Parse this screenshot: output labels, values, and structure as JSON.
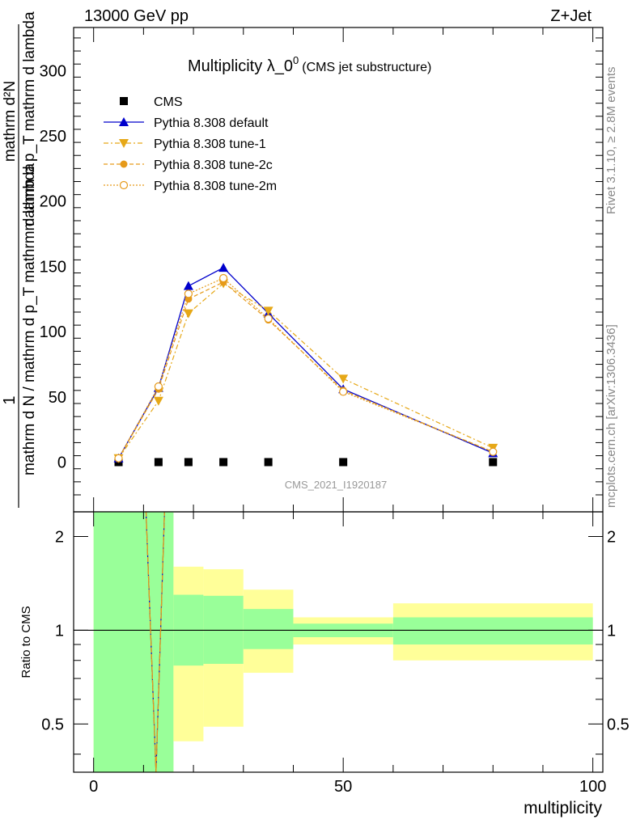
{
  "header": {
    "left": "13000 GeV pp",
    "right": "Z+Jet"
  },
  "plot": {
    "title_main": "Multiplicity λ_0",
    "title_sup": "0",
    "title_sub": "(CMS jet substructure)",
    "ylabel_numerator": "1",
    "ylabel_denominator": "mathrm d N / mathrm d p_T mathrm d lambda",
    "ylabel_right_top": "mathrm d²N",
    "ylabel_right_bottom": "mathrm d p_T mathrm d lambda",
    "watermark": "CMS_2021_I1920187",
    "side_label_top": "Rivet 3.1.10, ≥ 2.8M events",
    "side_label_bottom": "mcplots.cern.ch [arXiv:1306.3436]",
    "xlabel": "multiplicity",
    "ratio_ylabel": "Ratio to CMS"
  },
  "chart_data": {
    "type": "line",
    "title": "Multiplicity λ_0^0 (CMS jet substructure)",
    "xlabel": "multiplicity",
    "ylabel": "1 / (mathrm d N / mathrm d p_T mathrm d lambda) · mathrm d²N / (mathrm d p_T mathrm d lambda)",
    "xlim": [
      -4,
      102
    ],
    "ylim": [
      -38,
      333
    ],
    "yticks": [
      0,
      50,
      100,
      150,
      200,
      250,
      300
    ],
    "xticks": [
      0,
      50,
      100
    ],
    "legend_position": "top-left",
    "series": [
      {
        "name": "CMS",
        "color": "#000000",
        "marker": "square",
        "x": [
          5,
          13,
          19,
          26,
          35,
          50,
          80
        ],
        "y": [
          0.1,
          0.1,
          0.1,
          0.1,
          0.1,
          0.1,
          0.1
        ]
      },
      {
        "name": "Pythia 8.308 default",
        "color": "#0000cc",
        "marker": "triangle-up",
        "line": "solid",
        "x": [
          5,
          13,
          19,
          26,
          35,
          50,
          80
        ],
        "y": [
          3,
          57,
          135,
          149,
          114,
          56,
          7
        ]
      },
      {
        "name": "Pythia 8.308 tune-1",
        "color": "#e6a817",
        "marker": "triangle-down",
        "line": "dashdot",
        "x": [
          5,
          13,
          19,
          26,
          35,
          50,
          80
        ],
        "y": [
          3,
          47,
          114,
          137,
          116,
          64,
          11
        ]
      },
      {
        "name": "Pythia 8.308 tune-2c",
        "color": "#e69a1a",
        "marker": "circle",
        "line": "dashed",
        "x": [
          5,
          13,
          19,
          26,
          35,
          50,
          80
        ],
        "y": [
          3,
          56,
          125,
          138,
          109,
          55,
          8
        ]
      },
      {
        "name": "Pythia 8.308 tune-2m",
        "color": "#e69a1a",
        "marker": "circle-open",
        "line": "dotted",
        "x": [
          5,
          13,
          19,
          26,
          35,
          50,
          80
        ],
        "y": [
          3,
          58,
          129,
          141,
          110,
          54,
          8
        ]
      }
    ],
    "ratio": {
      "ylabel": "Ratio to CMS",
      "ylim": [
        0.35,
        2.4
      ],
      "yticks": [
        0.5,
        1,
        2
      ],
      "log_scale": true,
      "reference": 1,
      "bands": [
        {
          "x_range": [
            0,
            16
          ],
          "stat_low": 0.35,
          "stat_high": 2.4,
          "total_low": 0.35,
          "total_high": 2.4
        },
        {
          "x_range": [
            16,
            22
          ],
          "stat_low": 0.77,
          "stat_high": 1.3,
          "total_low": 0.44,
          "total_high": 1.6
        },
        {
          "x_range": [
            22,
            30
          ],
          "stat_low": 0.78,
          "stat_high": 1.29,
          "total_low": 0.49,
          "total_high": 1.57
        },
        {
          "x_range": [
            30,
            40
          ],
          "stat_low": 0.87,
          "stat_high": 1.17,
          "total_low": 0.73,
          "total_high": 1.35
        },
        {
          "x_range": [
            40,
            60
          ],
          "stat_low": 0.95,
          "stat_high": 1.05,
          "total_low": 0.9,
          "total_high": 1.1
        },
        {
          "x_range": [
            60,
            100
          ],
          "stat_low": 0.9,
          "stat_high": 1.1,
          "total_low": 0.8,
          "total_high": 1.22
        }
      ]
    }
  }
}
